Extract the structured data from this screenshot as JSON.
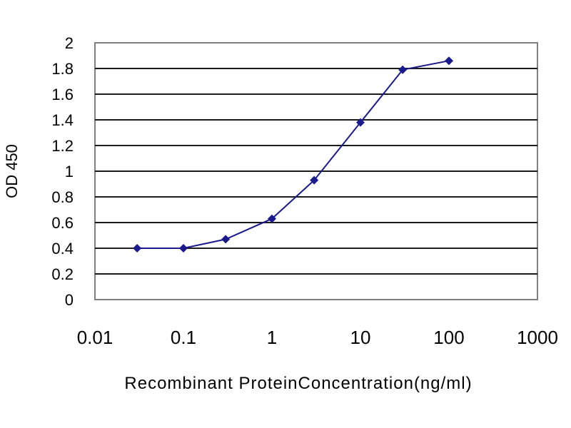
{
  "chart_data": {
    "type": "line",
    "xscale": "log",
    "xlim": [
      0.01,
      1000
    ],
    "ylim": [
      0,
      2
    ],
    "xticks": [
      "0.01",
      "0.1",
      "1",
      "10",
      "100",
      "1000"
    ],
    "yticks": [
      "0",
      "0.2",
      "0.4",
      "0.6",
      "0.8",
      "1",
      "1.2",
      "1.4",
      "1.6",
      "1.8",
      "2"
    ],
    "xlabel": "Recombinant ProteinConcentration(ng/ml)",
    "ylabel": "OD 450",
    "grid": "horizontal",
    "legend": "none",
    "series": [
      {
        "color": "#1a1a8c",
        "x": [
          0.03,
          0.1,
          0.3,
          1,
          3,
          10,
          30,
          100
        ],
        "y": [
          0.4,
          0.4,
          0.47,
          0.63,
          0.93,
          1.38,
          1.79,
          1.86
        ]
      }
    ]
  }
}
